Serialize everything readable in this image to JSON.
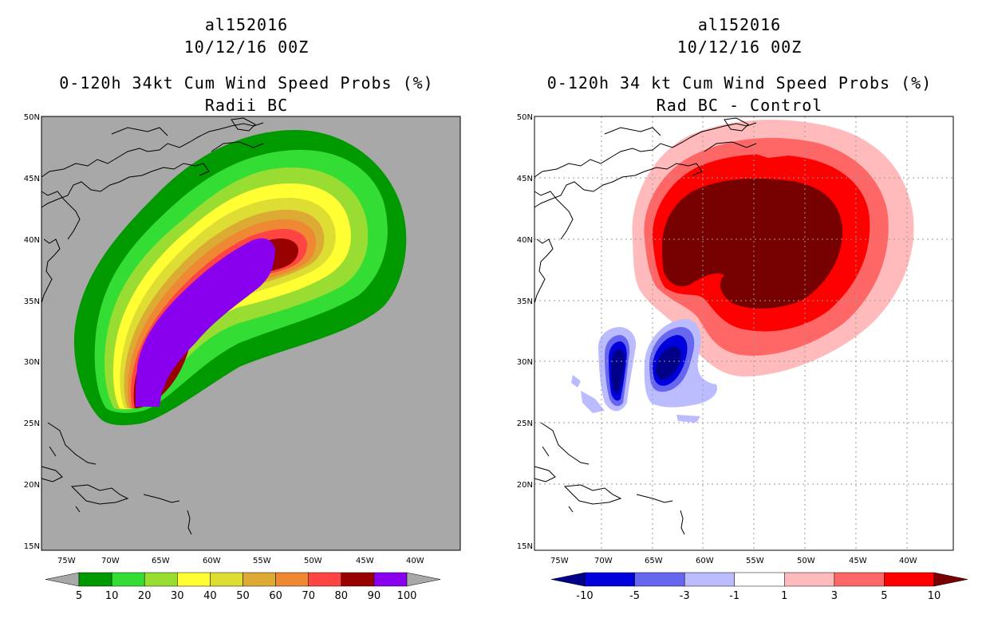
{
  "panels": [
    {
      "storm_id": "al152016",
      "datetime": "10/12/16 00Z",
      "title": "0-120h 34kt Cum Wind Speed Probs (%)",
      "subtitle": "Radii BC",
      "background": "#a8a8a8",
      "lon_labels": [
        "75W",
        "70W",
        "65W",
        "60W",
        "55W",
        "50W",
        "45W",
        "40W"
      ],
      "lat_labels": [
        "15N",
        "20N",
        "25N",
        "30N",
        "35N",
        "40N",
        "45N",
        "50N"
      ],
      "colorbar": {
        "colors": [
          "#009900",
          "#33dd33",
          "#99dd33",
          "#ffff33",
          "#dddd33",
          "#ddaa33",
          "#ee8833",
          "#ff4444",
          "#990000",
          "#8800ee"
        ],
        "labels": [
          "5",
          "10",
          "20",
          "30",
          "40",
          "50",
          "60",
          "70",
          "80",
          "90",
          "100"
        ],
        "under_color": "#a8a8a8",
        "over_color": "#a8a8a8"
      }
    },
    {
      "storm_id": "al152016",
      "datetime": "10/12/16 00Z",
      "title": "0-120h 34 kt Cum Wind Speed Probs (%)",
      "subtitle": "Rad BC - Control",
      "background": "#ffffff",
      "lon_labels": [
        "75W",
        "70W",
        "65W",
        "60W",
        "55W",
        "50W",
        "45W",
        "40W"
      ],
      "lat_labels": [
        "15N",
        "20N",
        "25N",
        "30N",
        "35N",
        "40N",
        "45N",
        "50N"
      ],
      "colorbar": {
        "colors": [
          "#0000dd",
          "#6666ee",
          "#bbbbff",
          "#ffffff",
          "#ffbbbb",
          "#ff6666",
          "#ff0000"
        ],
        "labels": [
          "-10",
          "-5",
          "-3",
          "-1",
          "1",
          "3",
          "5",
          "10"
        ],
        "under_color": "#000088",
        "over_color": "#770000"
      }
    }
  ]
}
